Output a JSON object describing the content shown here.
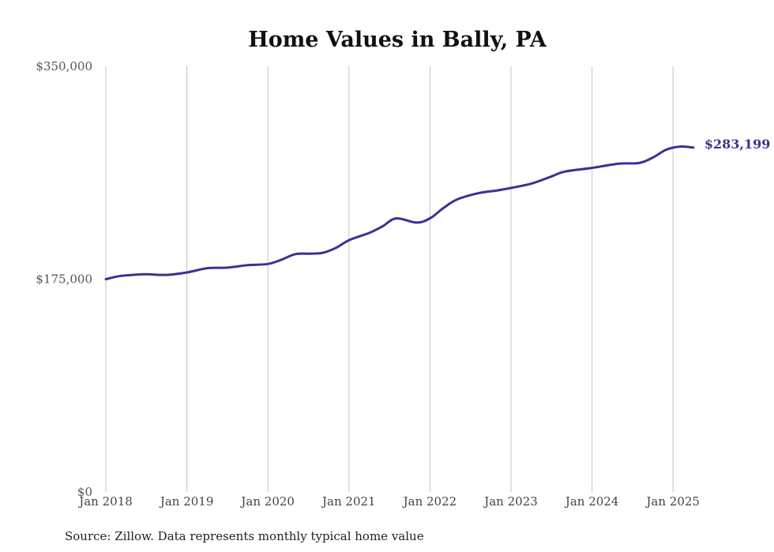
{
  "colors": {
    "line": "#3b3291",
    "grid": "#c4c4c4",
    "text": "#444444"
  },
  "chart_data": {
    "type": "line",
    "title": "Home Values in Bally, PA",
    "source": "Source: Zillow. Data represents monthly typical home value",
    "xlabel": "",
    "ylabel": "",
    "ylim": [
      0,
      350000
    ],
    "yticks": [
      {
        "value": 0,
        "label": "$0"
      },
      {
        "value": 175000,
        "label": "$175,000"
      },
      {
        "value": 350000,
        "label": "$350,000"
      }
    ],
    "xticks": [
      {
        "value": "2018-01",
        "label": "Jan 2018"
      },
      {
        "value": "2019-01",
        "label": "Jan 2019"
      },
      {
        "value": "2020-01",
        "label": "Jan 2020"
      },
      {
        "value": "2021-01",
        "label": "Jan 2021"
      },
      {
        "value": "2022-01",
        "label": "Jan 2022"
      },
      {
        "value": "2023-01",
        "label": "Jan 2023"
      },
      {
        "value": "2024-01",
        "label": "Jan 2024"
      },
      {
        "value": "2025-01",
        "label": "Jan 2025"
      }
    ],
    "grid": "vertical",
    "end_label": "$283,199",
    "series": [
      {
        "points": [
          [
            "2018-01",
            175000
          ],
          [
            "2018-03",
            177500
          ],
          [
            "2018-05",
            178500
          ],
          [
            "2018-07",
            179000
          ],
          [
            "2018-10",
            178500
          ],
          [
            "2019-01",
            180500
          ],
          [
            "2019-04",
            184000
          ],
          [
            "2019-07",
            184500
          ],
          [
            "2019-10",
            186500
          ],
          [
            "2020-01",
            187500
          ],
          [
            "2020-03",
            191000
          ],
          [
            "2020-05",
            195500
          ],
          [
            "2020-07",
            196000
          ],
          [
            "2020-09",
            196500
          ],
          [
            "2020-11",
            200500
          ],
          [
            "2021-01",
            207000
          ],
          [
            "2021-04",
            213000
          ],
          [
            "2021-06",
            218500
          ],
          [
            "2021-08",
            225000
          ],
          [
            "2021-11",
            221500
          ],
          [
            "2022-01",
            225000
          ],
          [
            "2022-03",
            233500
          ],
          [
            "2022-05",
            240500
          ],
          [
            "2022-08",
            245500
          ],
          [
            "2022-11",
            248000
          ],
          [
            "2023-01",
            250000
          ],
          [
            "2023-04",
            253500
          ],
          [
            "2023-07",
            259500
          ],
          [
            "2023-09",
            263500
          ],
          [
            "2024-01",
            266500
          ],
          [
            "2024-05",
            270000
          ],
          [
            "2024-08",
            270500
          ],
          [
            "2024-10",
            275000
          ],
          [
            "2024-12",
            281500
          ],
          [
            "2025-02",
            284000
          ],
          [
            "2025-04",
            283199
          ]
        ]
      }
    ]
  }
}
